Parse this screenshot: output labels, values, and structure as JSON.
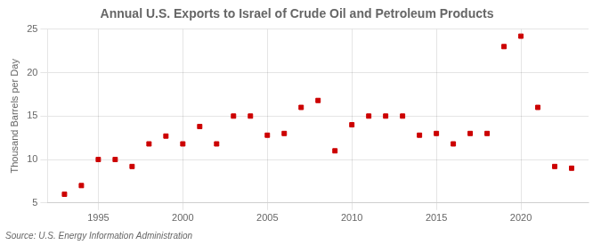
{
  "chart_data": {
    "type": "scatter",
    "title": "Annual U.S. Exports to Israel of Crude Oil and Petroleum Products",
    "ylabel": "Thousand Barrels per Day",
    "annotation": "Source: U.S. Energy Information Administration",
    "x": [
      1993,
      1994,
      1995,
      1996,
      1997,
      1998,
      1999,
      2000,
      2001,
      2002,
      2003,
      2004,
      2005,
      2006,
      2007,
      2008,
      2009,
      2010,
      2011,
      2012,
      2013,
      2014,
      2015,
      2016,
      2017,
      2018,
      2019,
      2020,
      2021,
      2022,
      2023
    ],
    "values": [
      6.0,
      7.0,
      10.0,
      10.0,
      9.2,
      11.8,
      12.7,
      11.8,
      13.8,
      11.8,
      15.0,
      15.0,
      12.8,
      13.0,
      16.0,
      16.8,
      11.0,
      14.0,
      15.0,
      15.0,
      15.0,
      12.8,
      13.0,
      11.8,
      13.0,
      13.0,
      23.0,
      24.2,
      16.0,
      9.2,
      9.0
    ],
    "color": "#cc0000",
    "marker": "square",
    "xlim": [
      1992,
      2024
    ],
    "xticks": [
      1995,
      2000,
      2005,
      2010,
      2015,
      2020
    ],
    "ylim": [
      5,
      25
    ],
    "yticks": [
      5,
      10,
      15,
      20,
      25
    ],
    "grid": true
  }
}
